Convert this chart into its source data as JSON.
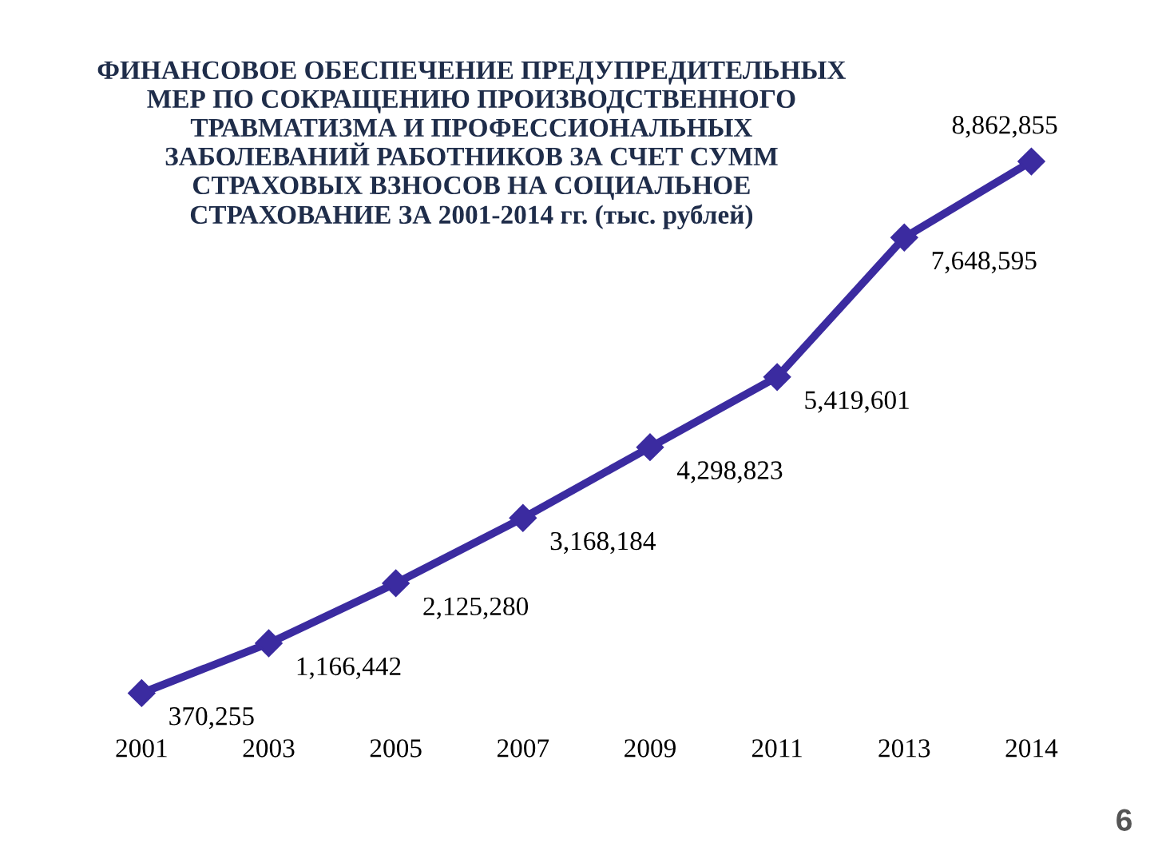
{
  "chart_data": {
    "type": "line",
    "title": "ФИНАНСОВОЕ ОБЕСПЕЧЕНИЕ ПРЕДУПРЕДИТЕЛЬНЫХ\nМЕР ПО СОКРАЩЕНИЮ ПРОИЗВОДСТВЕННОГО\nТРАВМАТИЗМА И ПРОФЕССИОНАЛЬНЫХ\nЗАБОЛЕВАНИЙ РАБОТНИКОВ ЗА СЧЕТ СУММ\nСТРАХОВЫХ ВЗНОСОВ НА СОЦИАЛЬНОЕ\nСТРАХОВАНИЕ ЗА 2001-2014 гг. (тыс. рублей)",
    "categories": [
      "2001",
      "2003",
      "2005",
      "2007",
      "2009",
      "2011",
      "2013",
      "2014"
    ],
    "series": [
      {
        "color": "#3b2ba0",
        "values": [
          370255,
          1166442,
          2125280,
          3168184,
          4298823,
          5419601,
          7648595,
          8862855
        ],
        "value_labels": [
          "370,255",
          "1,166,442",
          "2,125,280",
          "3,168,184",
          "4,298,823",
          "5,419,601",
          "7,648,595",
          "8,862,855"
        ]
      }
    ],
    "marker": "diamond",
    "line_style": "solid",
    "grid": false,
    "legend": false,
    "tick_labels": "x",
    "annotations": [
      "6"
    ]
  }
}
